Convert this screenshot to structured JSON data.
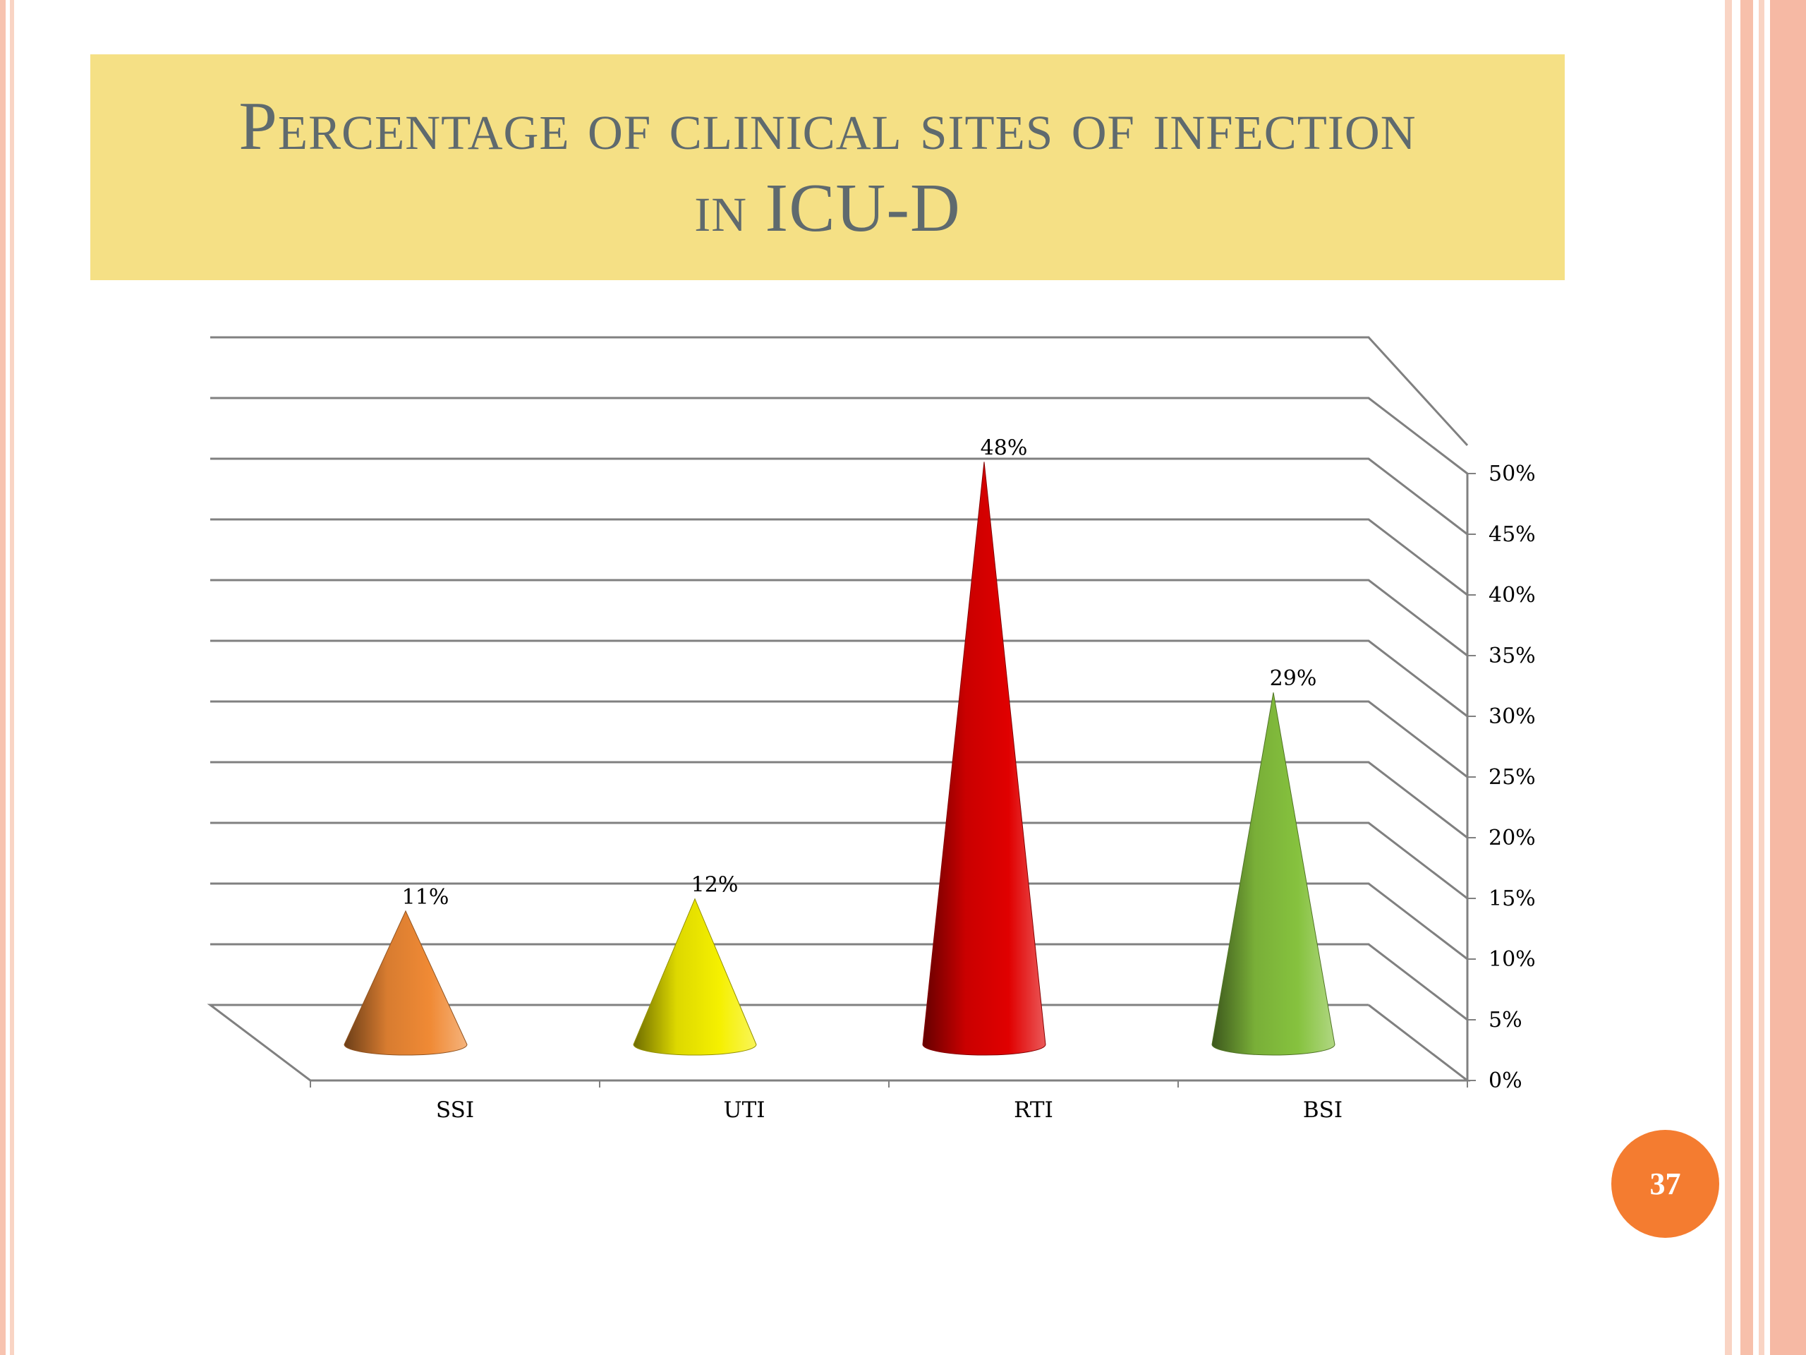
{
  "slide": {
    "title": "Percentage of clinical sites of infection in ICU-D",
    "page_number": "37",
    "colors": {
      "title_band": "#f5e085",
      "title_text": "#5f6a6e",
      "badge": "#f47c30"
    }
  },
  "chart_data": {
    "type": "bar",
    "bar_shape": "cone-3d",
    "categories": [
      "SSI",
      "UTI",
      "RTI",
      "BSI"
    ],
    "series": [
      {
        "values": [
          11,
          12,
          48,
          29
        ]
      }
    ],
    "data_labels": [
      "11%",
      "12%",
      "48%",
      "29%"
    ],
    "bar_colors": [
      "#f08a35",
      "#f5f000",
      "#e00000",
      "#86c23e"
    ],
    "ylim": [
      0,
      50
    ],
    "yticks": [
      0,
      5,
      10,
      15,
      20,
      25,
      30,
      35,
      40,
      45,
      50
    ],
    "ytick_labels": [
      "0%",
      "5%",
      "10%",
      "15%",
      "20%",
      "25%",
      "30%",
      "35%",
      "40%",
      "45%",
      "50%"
    ],
    "yaxis_position": "right",
    "grid": true,
    "legend": false
  }
}
